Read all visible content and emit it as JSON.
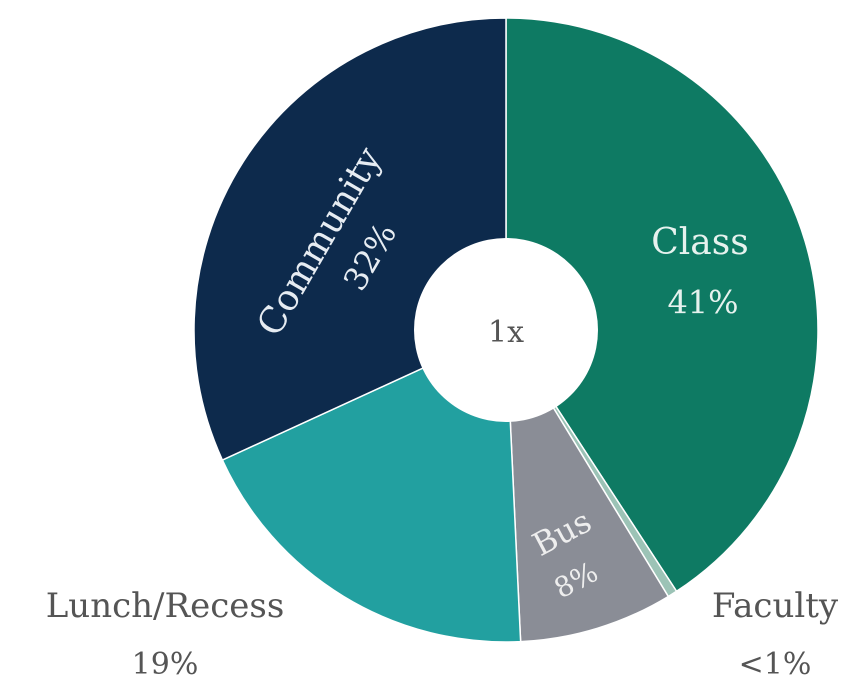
{
  "chart_data": {
    "type": "pie",
    "donut": true,
    "center_label": "1x",
    "categories": [
      "Class",
      "Faculty",
      "Bus",
      "Lunch/Recess",
      "Community"
    ],
    "values": [
      41,
      0.5,
      8,
      19,
      32
    ],
    "value_labels": [
      "41%",
      "<1%",
      "8%",
      "19%",
      "32%"
    ],
    "colors": [
      "#0e7a63",
      "#9cc3b6",
      "#8a8d96",
      "#22a0a0",
      "#0d2a4c"
    ]
  }
}
